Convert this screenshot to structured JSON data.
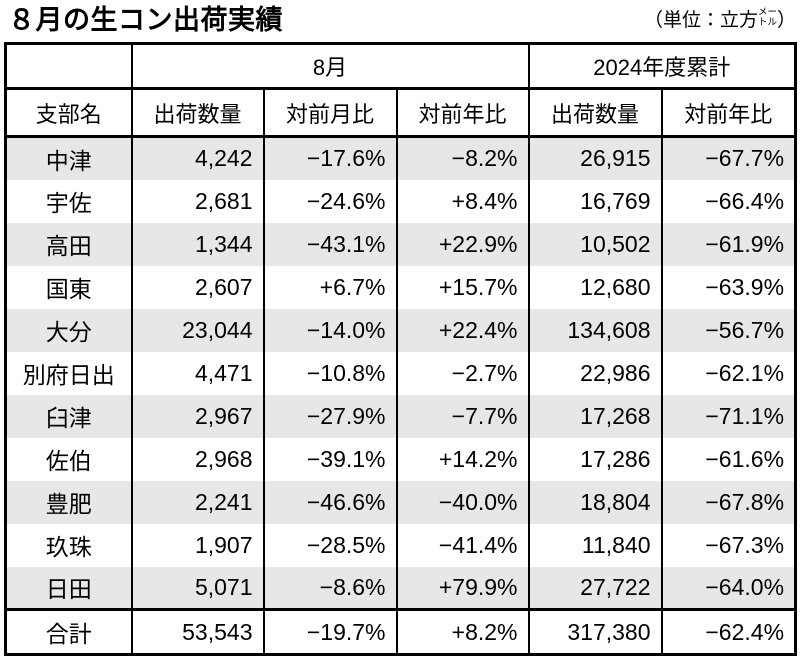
{
  "title": "８月の生コン出荷実績",
  "unit_note": {
    "prefix": "（単位：立方",
    "stack_top": "メー",
    "stack_bottom": "トル",
    "suffix": "）"
  },
  "table": {
    "group_headers": {
      "august": "8月",
      "cumulative": "2024年度累計"
    },
    "column_headers": {
      "branch": "支部名",
      "aug_qty": "出荷数量",
      "aug_mom": "対前月比",
      "aug_yoy": "対前年比",
      "cum_qty": "出荷数量",
      "cum_yoy": "対前年比"
    },
    "rows": [
      {
        "name": "中津",
        "aug_qty": "4,242",
        "mom": "−17.6%",
        "yoy": "−8.2%",
        "cum_qty": "26,915",
        "cum_yoy": "−67.7%"
      },
      {
        "name": "宇佐",
        "aug_qty": "2,681",
        "mom": "−24.6%",
        "yoy": "+8.4%",
        "cum_qty": "16,769",
        "cum_yoy": "−66.4%"
      },
      {
        "name": "高田",
        "aug_qty": "1,344",
        "mom": "−43.1%",
        "yoy": "+22.9%",
        "cum_qty": "10,502",
        "cum_yoy": "−61.9%"
      },
      {
        "name": "国東",
        "aug_qty": "2,607",
        "mom": "+6.7%",
        "yoy": "+15.7%",
        "cum_qty": "12,680",
        "cum_yoy": "−63.9%"
      },
      {
        "name": "大分",
        "aug_qty": "23,044",
        "mom": "−14.0%",
        "yoy": "+22.4%",
        "cum_qty": "134,608",
        "cum_yoy": "−56.7%"
      },
      {
        "name": "別府日出",
        "aug_qty": "4,471",
        "mom": "−10.8%",
        "yoy": "−2.7%",
        "cum_qty": "22,986",
        "cum_yoy": "−62.1%"
      },
      {
        "name": "臼津",
        "aug_qty": "2,967",
        "mom": "−27.9%",
        "yoy": "−7.7%",
        "cum_qty": "17,268",
        "cum_yoy": "−71.1%"
      },
      {
        "name": "佐伯",
        "aug_qty": "2,968",
        "mom": "−39.1%",
        "yoy": "+14.2%",
        "cum_qty": "17,286",
        "cum_yoy": "−61.6%"
      },
      {
        "name": "豊肥",
        "aug_qty": "2,241",
        "mom": "−46.6%",
        "yoy": "−40.0%",
        "cum_qty": "18,804",
        "cum_yoy": "−67.8%"
      },
      {
        "name": "玖珠",
        "aug_qty": "1,907",
        "mom": "−28.5%",
        "yoy": "−41.4%",
        "cum_qty": "11,840",
        "cum_yoy": "−67.3%"
      },
      {
        "name": "日田",
        "aug_qty": "5,071",
        "mom": "−8.6%",
        "yoy": "+79.9%",
        "cum_qty": "27,722",
        "cum_yoy": "−64.0%"
      }
    ],
    "total": {
      "name": "合計",
      "aug_qty": "53,543",
      "mom": "−19.7%",
      "yoy": "+8.2%",
      "cum_qty": "317,380",
      "cum_yoy": "−62.4%"
    }
  },
  "colors": {
    "row_shade": "#e7e7e7",
    "border": "#000000",
    "background": "#ffffff"
  },
  "chart_data": {
    "type": "table",
    "title": "８月の生コン出荷実績",
    "unit": "立方メートル",
    "columns": [
      "支部名",
      "8月 出荷数量",
      "8月 対前月比",
      "8月 対前年比",
      "2024年度累計 出荷数量",
      "2024年度累計 対前年比"
    ],
    "rows": [
      [
        "中津",
        4242,
        "-17.6%",
        "-8.2%",
        26915,
        "-67.7%"
      ],
      [
        "宇佐",
        2681,
        "-24.6%",
        "+8.4%",
        16769,
        "-66.4%"
      ],
      [
        "高田",
        1344,
        "-43.1%",
        "+22.9%",
        10502,
        "-61.9%"
      ],
      [
        "国東",
        2607,
        "+6.7%",
        "+15.7%",
        12680,
        "-63.9%"
      ],
      [
        "大分",
        23044,
        "-14.0%",
        "+22.4%",
        134608,
        "-56.7%"
      ],
      [
        "別府日出",
        4471,
        "-10.8%",
        "-2.7%",
        22986,
        "-62.1%"
      ],
      [
        "臼津",
        2967,
        "-27.9%",
        "-7.7%",
        17268,
        "-71.1%"
      ],
      [
        "佐伯",
        2968,
        "-39.1%",
        "+14.2%",
        17286,
        "-61.6%"
      ],
      [
        "豊肥",
        2241,
        "-46.6%",
        "-40.0%",
        18804,
        "-67.8%"
      ],
      [
        "玖珠",
        1907,
        "-28.5%",
        "-41.4%",
        11840,
        "-67.3%"
      ],
      [
        "日田",
        5071,
        "-8.6%",
        "+79.9%",
        27722,
        "-64.0%"
      ]
    ],
    "total_row": [
      "合計",
      53543,
      "-19.7%",
      "+8.2%",
      317380,
      "-62.4%"
    ]
  }
}
